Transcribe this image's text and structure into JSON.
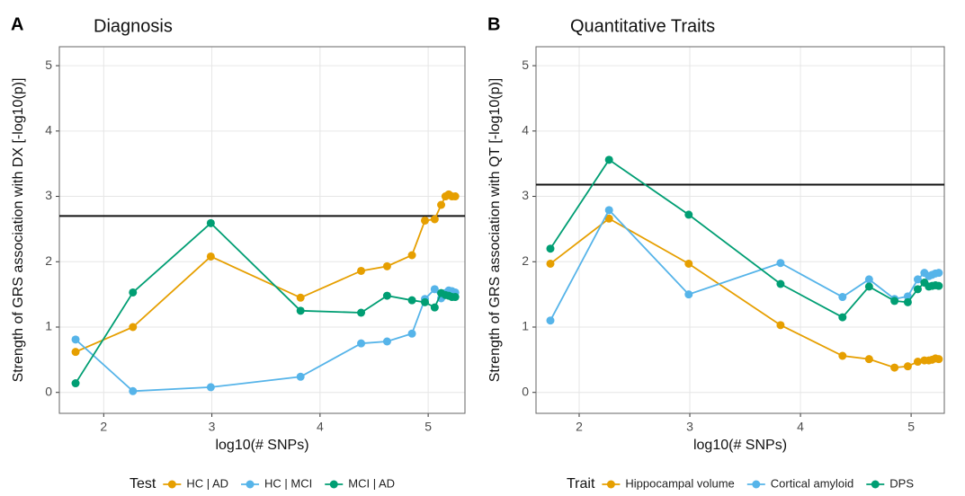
{
  "chart_data": [
    {
      "type": "line",
      "panel_label": "A",
      "title": "Diagnosis",
      "x_label": "log10(# SNPs)",
      "y_label": "Strength of GRS association with DX [-log10(p)]",
      "x": [
        1.74,
        2.27,
        2.99,
        3.82,
        4.38,
        4.62,
        4.85,
        4.97,
        5.06,
        5.12,
        5.16,
        5.19,
        5.22,
        5.25
      ],
      "series": [
        {
          "name": "HC | AD",
          "color": "#E69F00",
          "values": [
            0.62,
            1.0,
            2.08,
            1.45,
            1.86,
            1.93,
            2.1,
            2.63,
            2.65,
            2.87,
            3.0,
            3.03,
            3.0,
            3.0
          ]
        },
        {
          "name": "HC | MCI",
          "color": "#56B4E9",
          "values": [
            0.81,
            0.02,
            0.08,
            0.24,
            0.75,
            0.78,
            0.9,
            1.43,
            1.58,
            1.44,
            1.52,
            1.56,
            1.55,
            1.53
          ]
        },
        {
          "name": "MCI | AD",
          "color": "#009E73",
          "values": [
            0.14,
            1.53,
            2.59,
            1.25,
            1.22,
            1.48,
            1.41,
            1.38,
            1.3,
            1.52,
            1.49,
            1.48,
            1.46,
            1.46
          ]
        }
      ],
      "hline": 2.7,
      "xlim": [
        1.59,
        5.34
      ],
      "ylim": [
        -0.32,
        5.29
      ],
      "xticks": [
        2,
        3,
        4,
        5
      ],
      "yticks": [
        0,
        1,
        2,
        3,
        4,
        5
      ],
      "grid": true,
      "legend_title": "Test",
      "legend": "bottom"
    },
    {
      "type": "line",
      "panel_label": "B",
      "title": "Quantitative Traits",
      "x_label": "log10(# SNPs)",
      "y_label": "Strength of GRS association with QT [-log10(p)]",
      "x": [
        1.74,
        2.27,
        2.99,
        3.82,
        4.38,
        4.62,
        4.85,
        4.97,
        5.06,
        5.12,
        5.16,
        5.19,
        5.22,
        5.25
      ],
      "series": [
        {
          "name": "Hippocampal volume",
          "color": "#E69F00",
          "values": [
            1.97,
            2.66,
            1.97,
            1.03,
            0.56,
            0.51,
            0.38,
            0.4,
            0.47,
            0.49,
            0.49,
            0.5,
            0.52,
            0.51
          ]
        },
        {
          "name": "Cortical amyloid",
          "color": "#56B4E9",
          "values": [
            1.1,
            2.79,
            1.5,
            1.98,
            1.46,
            1.73,
            1.43,
            1.47,
            1.73,
            1.83,
            1.78,
            1.8,
            1.82,
            1.83
          ]
        },
        {
          "name": "DPS",
          "color": "#009E73",
          "values": [
            2.2,
            3.56,
            2.72,
            1.66,
            1.15,
            1.62,
            1.4,
            1.38,
            1.58,
            1.68,
            1.62,
            1.63,
            1.64,
            1.63
          ]
        }
      ],
      "hline": 3.18,
      "xlim": [
        1.61,
        5.3
      ],
      "ylim": [
        -0.32,
        5.29
      ],
      "xticks": [
        2,
        3,
        4,
        5
      ],
      "yticks": [
        0,
        1,
        2,
        3,
        4,
        5
      ],
      "grid": true,
      "legend_title": "Trait",
      "legend": "bottom"
    }
  ]
}
